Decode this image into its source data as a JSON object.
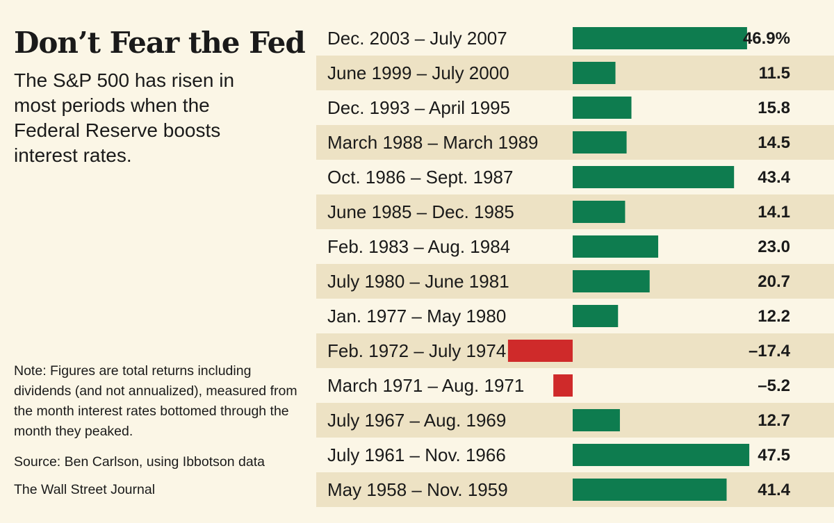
{
  "title": "Don’t Fear the Fed",
  "subtitle": "The S&P 500 has risen in most periods when the Federal Reserve boosts interest rates.",
  "note": "Note: Figures are total returns including dividends (and not annualized), measured from the month interest rates bottomed through the month they peaked.",
  "source": "Source: Ben Carlson, using Ibbotson data",
  "credit": "The Wall Street Journal",
  "colors": {
    "positive": "#0e7c4f",
    "negative": "#cf2a2a",
    "stripe": "#ede2c4",
    "background": "#fbf6e6"
  },
  "chart_data": {
    "type": "bar",
    "orientation": "horizontal",
    "unit": "%",
    "categories": [
      "Dec. 2003 – July 2007",
      "June 1999 – July 2000",
      "Dec. 1993 – April 1995",
      "March 1988 – March 1989",
      "Oct. 1986 – Sept. 1987",
      "June 1985 – Dec. 1985",
      "Feb. 1983 – Aug. 1984",
      "July 1980 – June 1981",
      "Jan. 1977 – May 1980",
      "Feb. 1972 – July 1974",
      "March 1971 – Aug. 1971",
      "July 1967 – Aug. 1969",
      "July 1961 – Nov. 1966",
      "May 1958 – Nov. 1959"
    ],
    "values": [
      46.9,
      11.5,
      15.8,
      14.5,
      43.4,
      14.1,
      23.0,
      20.7,
      12.2,
      -17.4,
      -5.2,
      12.7,
      47.5,
      41.4
    ],
    "value_labels": [
      "46.9%",
      "11.5",
      "15.8",
      "14.5",
      "43.4",
      "14.1",
      "23.0",
      "20.7",
      "12.2",
      "–17.4",
      "–5.2",
      "12.7",
      "47.5",
      "41.4"
    ],
    "xlim": [
      -18,
      48
    ]
  }
}
